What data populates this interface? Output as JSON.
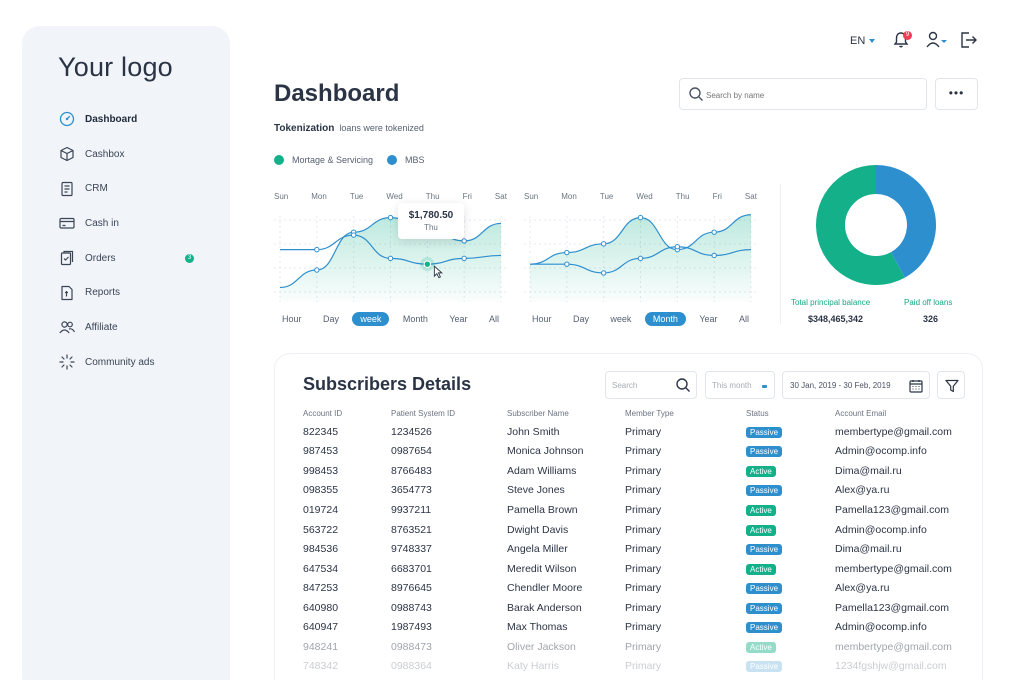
{
  "app": {
    "logo": "Your logo",
    "title": "Dashboard",
    "language": "EN",
    "notification_count": "9"
  },
  "colors": {
    "green": "#14b08a",
    "blue": "#2e8fcf",
    "sidebar_bg": "#f1f4f8"
  },
  "sidebar": {
    "items": [
      {
        "label": "Dashboard",
        "icon": "gauge-icon",
        "active": true
      },
      {
        "label": "Cashbox",
        "icon": "box-icon"
      },
      {
        "label": "CRM",
        "icon": "document-icon"
      },
      {
        "label": "Cash in",
        "icon": "card-icon"
      },
      {
        "label": "Orders",
        "icon": "orders-icon",
        "badge": "3"
      },
      {
        "label": "Reports",
        "icon": "report-icon"
      },
      {
        "label": "Affiliate",
        "icon": "users-icon"
      },
      {
        "label": "Community ads",
        "icon": "spinner-icon"
      }
    ]
  },
  "search": {
    "placeholder": "Search by name",
    "more_label": "•••"
  },
  "tokenization": {
    "title": "Tokenization",
    "subtitle": "loans were tokenized"
  },
  "legend": [
    {
      "label": "Mortage & Servicing",
      "color": "#14b08a"
    },
    {
      "label": "MBS",
      "color": "#2e8fcf"
    }
  ],
  "charts": {
    "days": [
      "Sun",
      "Mon",
      "Tue",
      "Wed",
      "Thu",
      "Fri",
      "Sat"
    ],
    "periods_left": [
      "Hour",
      "Day",
      "week",
      "Month",
      "Year",
      "All"
    ],
    "periods_right": [
      "Hour",
      "Day",
      "week",
      "Month",
      "Year",
      "All"
    ],
    "selected_left": "week",
    "selected_right": "Month",
    "tooltip": {
      "value": "$1,780.50",
      "day": "Thu"
    }
  },
  "pie": {
    "labels": [
      {
        "label": "Total principal balance",
        "value": "$348,465,342"
      },
      {
        "label": "Paid off loans",
        "value": "326"
      }
    ]
  },
  "chart_data": [
    {
      "type": "line",
      "x": [
        "Sun",
        "Mon",
        "Tue",
        "Wed",
        "Thu",
        "Fri",
        "Sat"
      ],
      "series": [
        {
          "name": "Mortage & Servicing",
          "values": [
            2,
            2.6,
            3.9,
            4.4,
            4.0,
            3.6,
            4.2
          ]
        },
        {
          "name": "MBS",
          "values": [
            3.3,
            3.3,
            3.8,
            3.0,
            2.8,
            3.0,
            3.1
          ]
        }
      ]
    },
    {
      "type": "line",
      "x": [
        "Sun",
        "Mon",
        "Tue",
        "Wed",
        "Thu",
        "Fri",
        "Sat"
      ],
      "series": [
        {
          "name": "Mortage & Servicing",
          "values": [
            2.8,
            3.2,
            3.5,
            4.4,
            3.3,
            3.9,
            4.5
          ]
        },
        {
          "name": "MBS",
          "values": [
            2.8,
            2.8,
            2.5,
            3.0,
            3.4,
            3.1,
            3.3
          ]
        }
      ]
    },
    {
      "type": "pie",
      "series": [
        {
          "values": [
            58,
            42
          ]
        }
      ]
    }
  ],
  "subscribers": {
    "title": "Subscribers Details",
    "search_placeholder": "Search",
    "month_placeholder": "This month",
    "date_range": "30 Jan, 2019 - 30 Feb, 2019",
    "columns": [
      "Account ID",
      "Patient System ID",
      "Subscriber Name",
      "Member Type",
      "Status",
      "Account Email"
    ],
    "rows": [
      [
        "822345",
        "1234526",
        "John Smith",
        "Primary",
        "Passive",
        "membertype@gmail.com"
      ],
      [
        "987453",
        "0987654",
        "Monica Johnson",
        "Primary",
        "Passive",
        "Admin@ocomp.info"
      ],
      [
        "998453",
        "8766483",
        "Adam Williams",
        "Primary",
        "Active",
        "Dima@mail.ru"
      ],
      [
        "098355",
        "3654773",
        "Steve Jones",
        "Primary",
        "Passive",
        "Alex@ya.ru"
      ],
      [
        "019724",
        "9937211",
        "Pamella Brown",
        "Primary",
        "Active",
        "Pamella123@gmail.com"
      ],
      [
        "563722",
        "8763521",
        "Dwight Davis",
        "Primary",
        "Active",
        "Admin@ocomp.info"
      ],
      [
        "984536",
        "9748337",
        "Angela Miller",
        "Primary",
        "Passive",
        "Dima@mail.ru"
      ],
      [
        "647534",
        "6683701",
        "Meredit Wilson",
        "Primary",
        "Active",
        "membertype@gmail.com"
      ],
      [
        "847253",
        "8976645",
        "Chendler Moore",
        "Primary",
        "Passive",
        "Alex@ya.ru"
      ],
      [
        "640980",
        "0988743",
        "Barak Anderson",
        "Primary",
        "Passive",
        "Pamella123@gmail.com"
      ],
      [
        "640947",
        "1987493",
        "Max Thomas",
        "Primary",
        "Passive",
        "Admin@ocomp.info"
      ],
      [
        "948241",
        "0988473",
        "Oliver Jackson",
        "Primary",
        "Active",
        "membertype@gmail.com"
      ],
      [
        "748342",
        "0988364",
        "Katy Harris",
        "Primary",
        "Passive",
        "1234fgshjw@gmail.com"
      ]
    ]
  }
}
